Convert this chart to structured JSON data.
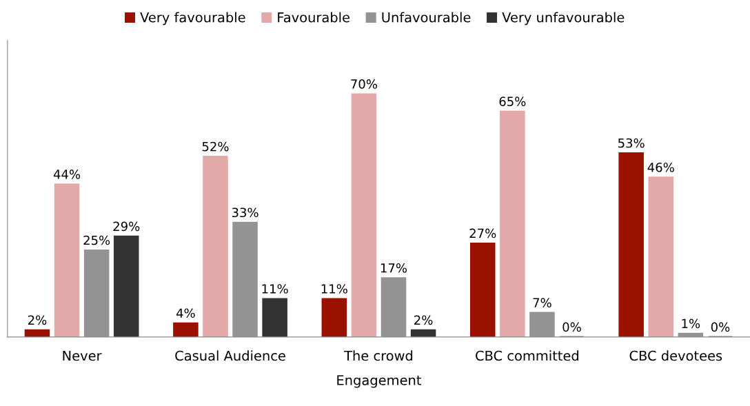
{
  "chart_data": {
    "type": "bar",
    "xlabel": "Engagement",
    "categories": [
      "Never",
      "Casual Audience",
      "The crowd",
      "CBC committed",
      "CBC devotees"
    ],
    "series": [
      {
        "name": "Very favourable",
        "color": "#9b1100",
        "values": [
          2,
          4,
          11,
          27,
          53
        ],
        "value_labels": [
          "2%",
          "4%",
          "11%",
          "27%",
          "53%"
        ]
      },
      {
        "name": "Favourable",
        "color": "#e3a9a8",
        "values": [
          44,
          52,
          70,
          65,
          46
        ],
        "value_labels": [
          "44%",
          "52%",
          "70%",
          "65%",
          "46%"
        ]
      },
      {
        "name": "Unfavourable",
        "color": "#939393",
        "values": [
          25,
          33,
          17,
          7,
          1
        ],
        "value_labels": [
          "25%",
          "33%",
          "17%",
          "7%",
          "1%"
        ]
      },
      {
        "name": "Very unfavourable",
        "color": "#333333",
        "values": [
          29,
          11,
          2,
          0,
          0
        ],
        "value_labels": [
          "29%",
          "11%",
          "2%",
          "0%",
          "0%"
        ]
      }
    ],
    "legend": "top",
    "grid": false
  }
}
